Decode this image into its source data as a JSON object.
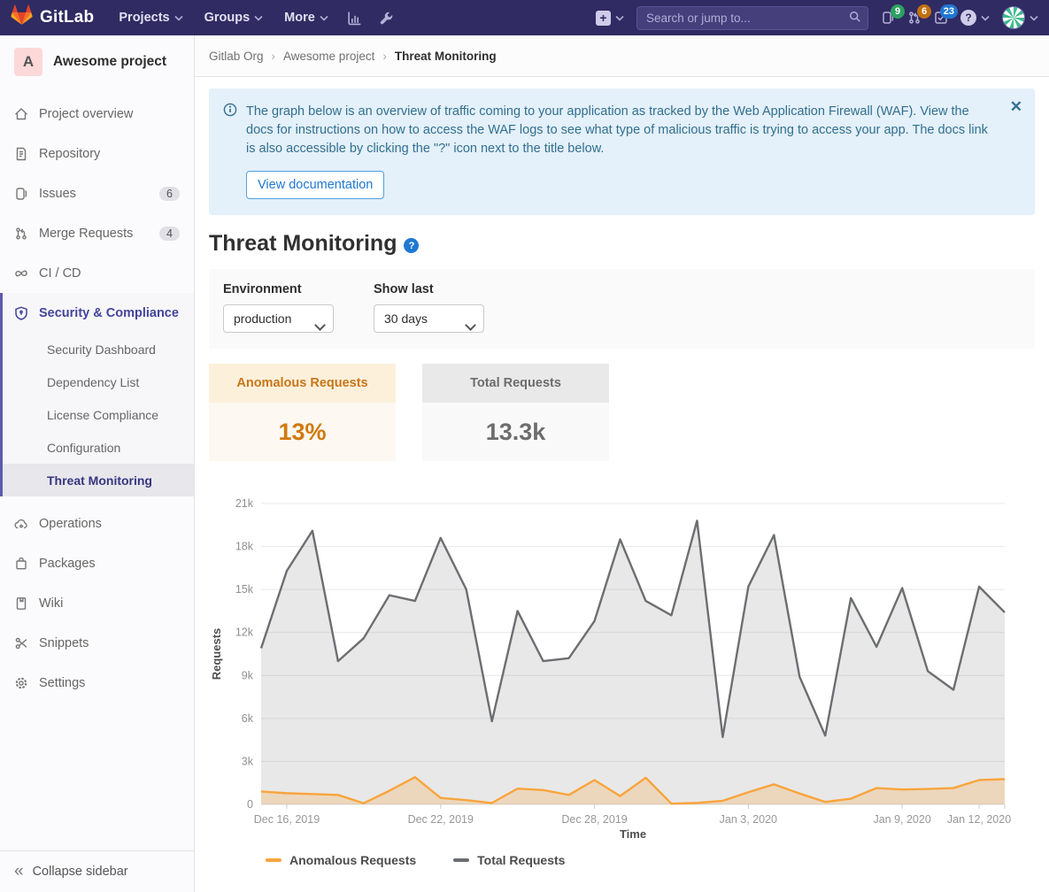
{
  "navbar": {
    "brand": "GitLab",
    "menus": {
      "projects": "Projects",
      "groups": "Groups",
      "more": "More"
    },
    "search_placeholder": "Search or jump to...",
    "issues_count": "9",
    "merge_requests_count": "6",
    "todos_count": "23",
    "badge_colors": {
      "issues": "#2da160",
      "merge_requests": "#c0710f",
      "todos": "#1f78d1"
    }
  },
  "sidebar": {
    "project": {
      "initial": "A",
      "name": "Awesome project"
    },
    "items": [
      {
        "label": "Project overview"
      },
      {
        "label": "Repository"
      },
      {
        "label": "Issues",
        "badge": "6"
      },
      {
        "label": "Merge Requests",
        "badge": "4"
      },
      {
        "label": "CI / CD"
      },
      {
        "label": "Security & Compliance"
      },
      {
        "label": "Operations"
      },
      {
        "label": "Packages"
      },
      {
        "label": "Wiki"
      },
      {
        "label": "Snippets"
      },
      {
        "label": "Settings"
      }
    ],
    "security_subitems": [
      {
        "label": "Security Dashboard"
      },
      {
        "label": "Dependency List"
      },
      {
        "label": "License Compliance"
      },
      {
        "label": "Configuration"
      },
      {
        "label": "Threat Monitoring"
      }
    ],
    "active_item": "Threat Monitoring",
    "collapse_label": "Collapse sidebar"
  },
  "breadcrumb": {
    "items": [
      "Gitlab Org",
      "Awesome project",
      "Threat Monitoring"
    ]
  },
  "alert": {
    "text": "The graph below is an overview of traffic coming to your application as tracked by the Web Application Firewall (WAF). View the docs for instructions on how to access the WAF logs to see what type of malicious traffic is trying to access your app. The docs link is also accessible by clicking the \"?\" icon next to the title below.",
    "button_label": "View documentation"
  },
  "page": {
    "title": "Threat Monitoring"
  },
  "filters": {
    "environment_label": "Environment",
    "environment_value": "production",
    "show_last_label": "Show last",
    "show_last_value": "30 days"
  },
  "stats": {
    "anomalous": {
      "label": "Anomalous Requests",
      "value": "13%",
      "accent": "#d0790e"
    },
    "total": {
      "label": "Total Requests",
      "value": "13.3k",
      "accent": "#6d6d6d"
    }
  },
  "chart_data": {
    "type": "area",
    "title": "",
    "xlabel": "Time",
    "ylabel": "Requests",
    "ylim": [
      0,
      21000
    ],
    "grid": true,
    "legend_position": "bottom-left",
    "yticks": [
      "0",
      "3k",
      "6k",
      "9k",
      "12k",
      "15k",
      "18k",
      "21k"
    ],
    "x": [
      "Dec 15, 2019",
      "Dec 16, 2019",
      "Dec 17, 2019",
      "Dec 18, 2019",
      "Dec 19, 2019",
      "Dec 20, 2019",
      "Dec 21, 2019",
      "Dec 22, 2019",
      "Dec 23, 2019",
      "Dec 24, 2019",
      "Dec 25, 2019",
      "Dec 26, 2019",
      "Dec 27, 2019",
      "Dec 28, 2019",
      "Dec 29, 2019",
      "Dec 30, 2019",
      "Dec 31, 2019",
      "Jan 1, 2020",
      "Jan 2, 2020",
      "Jan 3, 2020",
      "Jan 4, 2020",
      "Jan 5, 2020",
      "Jan 6, 2020",
      "Jan 7, 2020",
      "Jan 8, 2020",
      "Jan 9, 2020",
      "Jan 10, 2020",
      "Jan 11, 2020",
      "Jan 12, 2020",
      "Jan 13, 2020"
    ],
    "xticks": [
      {
        "index": 1,
        "label": "Dec 16, 2019"
      },
      {
        "index": 7,
        "label": "Dec 22, 2019"
      },
      {
        "index": 13,
        "label": "Dec 28, 2019"
      },
      {
        "index": 19,
        "label": "Jan 3, 2020"
      },
      {
        "index": 25,
        "label": "Jan 9, 2020"
      },
      {
        "index": 28,
        "label": "Jan 12, 2020"
      }
    ],
    "series": [
      {
        "name": "Total Requests",
        "color": "#6d6e71",
        "fill_opacity": 0.16,
        "values": [
          10900,
          16300,
          19100,
          10000,
          11600,
          14600,
          14200,
          18600,
          15000,
          5800,
          13500,
          10000,
          10200,
          12800,
          18500,
          14200,
          13200,
          19800,
          4700,
          15200,
          18800,
          8900,
          4800,
          14400,
          11000,
          15100,
          9300,
          8000,
          15200,
          13400
        ]
      },
      {
        "name": "Anomalous Requests",
        "color": "#f9a43c",
        "fill_opacity": 0.25,
        "values": [
          900,
          780,
          720,
          660,
          80,
          950,
          1900,
          450,
          300,
          100,
          1100,
          1000,
          660,
          1700,
          580,
          1860,
          50,
          100,
          250,
          850,
          1400,
          760,
          170,
          400,
          1140,
          1040,
          1080,
          1140,
          1700,
          1760
        ]
      }
    ]
  }
}
